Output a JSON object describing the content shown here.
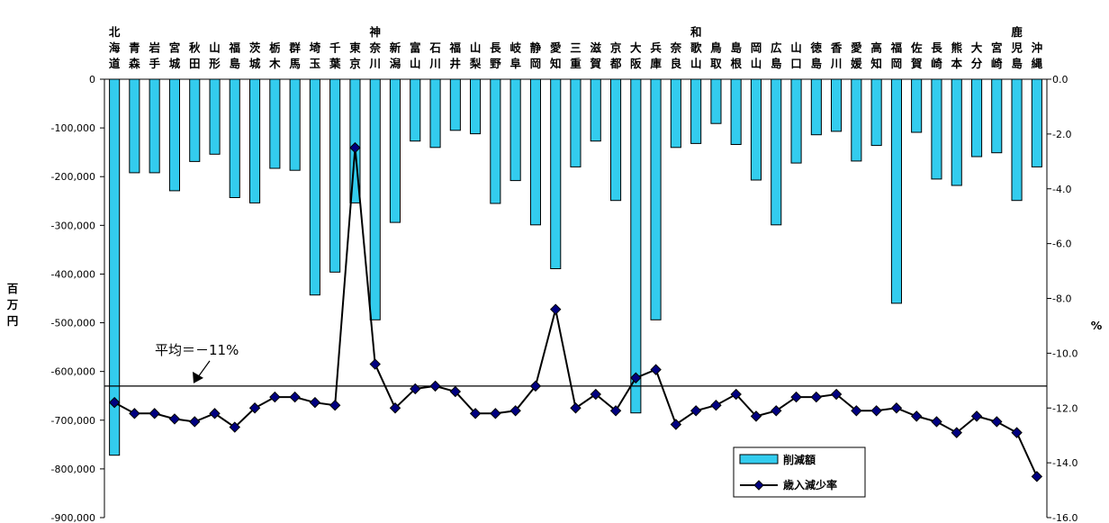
{
  "chart_data": {
    "type": "bar",
    "categories": [
      "北海道",
      "青森",
      "岩手",
      "宮城",
      "秋田",
      "山形",
      "福島",
      "茨城",
      "栃木",
      "群馬",
      "埼玉",
      "千葉",
      "東京",
      "神奈川",
      "新潟",
      "富山",
      "石川",
      "福井",
      "山梨",
      "長野",
      "岐阜",
      "静岡",
      "愛知",
      "三重",
      "滋賀",
      "京都",
      "大阪",
      "兵庫",
      "奈良",
      "和歌山",
      "鳥取",
      "島根",
      "岡山",
      "広島",
      "山口",
      "徳島",
      "香川",
      "愛媛",
      "高知",
      "福岡",
      "佐賀",
      "長崎",
      "熊本",
      "大分",
      "宮崎",
      "鹿児島",
      "沖縄"
    ],
    "series": [
      {
        "name": "削減額",
        "type": "bar",
        "axis": "left",
        "color": "#33CCEE",
        "values": [
          -772000,
          -192000,
          -192000,
          -229000,
          -169000,
          -154000,
          -243000,
          -254000,
          -183000,
          -187000,
          -443000,
          -396000,
          -254000,
          -494000,
          -294000,
          -127000,
          -140000,
          -105000,
          -112000,
          -255000,
          -208000,
          -299000,
          -389000,
          -180000,
          -127000,
          -249000,
          -685000,
          -494000,
          -140000,
          -132000,
          -91000,
          -134000,
          -207000,
          -299000,
          -172000,
          -114000,
          -107000,
          -168000,
          -136000,
          -460000,
          -109000,
          -205000,
          -218000,
          -159000,
          -151000,
          -249000,
          -180000
        ]
      },
      {
        "name": "歳入減少率",
        "type": "line",
        "axis": "right",
        "color": "#000080",
        "values": [
          -11.8,
          -12.2,
          -12.2,
          -12.4,
          -12.5,
          -12.2,
          -12.7,
          -12.0,
          -11.6,
          -11.6,
          -11.8,
          -11.9,
          -2.5,
          -10.4,
          -12.0,
          -11.3,
          -11.2,
          -11.4,
          -12.2,
          -12.2,
          -12.1,
          -11.2,
          -8.4,
          -12.0,
          -11.5,
          -12.1,
          -10.9,
          -10.6,
          -12.6,
          -12.1,
          -11.9,
          -11.5,
          -12.3,
          -12.1,
          -11.6,
          -11.6,
          -11.5,
          -12.1,
          -12.1,
          -12.0,
          -12.3,
          -12.5,
          -12.9,
          -12.3,
          -12.5,
          -12.9,
          -14.5
        ]
      }
    ],
    "ylabel": "百万円",
    "y2label": "%",
    "ylim": [
      -900000,
      0
    ],
    "y2lim": [
      -16.0,
      0.0
    ],
    "yticks": [
      "0",
      "-100,000",
      "-200,000",
      "-300,000",
      "-400,000",
      "-500,000",
      "-600,000",
      "-700,000",
      "-800,000",
      "-900,000"
    ],
    "y2ticks": [
      "0.0",
      "-2.0",
      "-4.0",
      "-6.0",
      "-8.0",
      "-10.0",
      "-12.0",
      "-14.0",
      "-16.0"
    ],
    "average": {
      "value": -11.2,
      "label": "平均＝－11%"
    },
    "legend": {
      "position": "bottom-right",
      "entries": [
        "削減額",
        "歳入減少率"
      ]
    },
    "grid": false
  }
}
